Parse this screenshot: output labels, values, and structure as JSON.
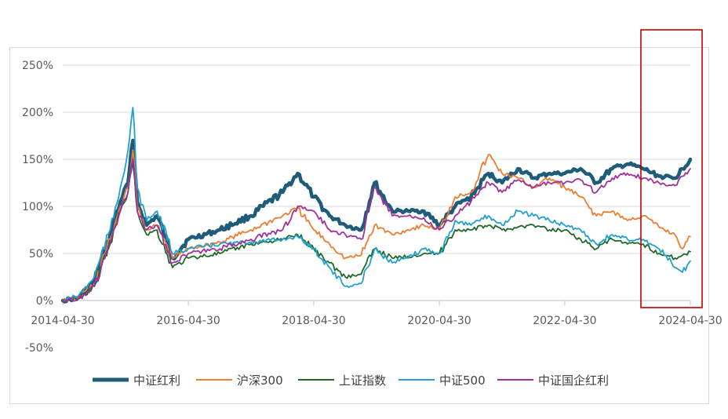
{
  "chart_data": {
    "type": "line",
    "title": "",
    "xlabel": "",
    "ylabel": "",
    "x_ticks": [
      "2014-04-30",
      "2016-04-30",
      "2018-04-30",
      "2020-04-30",
      "2022-04-30",
      "2024-04-30"
    ],
    "y_ticks": [
      "250%",
      "200%",
      "150%",
      "100%",
      "50%",
      "0%",
      "-50%"
    ],
    "ylim": [
      -50,
      250
    ],
    "xlim": [
      "2014-04-30",
      "2024-04-30"
    ],
    "grid": "horizontal",
    "legend_position": "bottom",
    "highlight": {
      "from": "2023-07-31",
      "to": "2024-04-30",
      "color": "#c00000"
    },
    "x": [
      "2014-04-30",
      "2014-07-31",
      "2014-10-31",
      "2015-01-31",
      "2015-03-31",
      "2015-05-15",
      "2015-06-12",
      "2015-07-08",
      "2015-08-31",
      "2015-10-31",
      "2016-01-29",
      "2016-04-30",
      "2016-10-31",
      "2017-04-30",
      "2017-10-31",
      "2018-01-26",
      "2018-04-30",
      "2018-07-31",
      "2018-10-31",
      "2019-01-31",
      "2019-04-19",
      "2019-07-31",
      "2019-10-31",
      "2020-01-31",
      "2020-04-30",
      "2020-07-31",
      "2020-10-31",
      "2021-02-10",
      "2021-04-30",
      "2021-07-31",
      "2021-10-31",
      "2022-01-31",
      "2022-04-30",
      "2022-07-31",
      "2022-10-31",
      "2023-01-31",
      "2023-04-30",
      "2023-07-31",
      "2023-10-31",
      "2024-01-31",
      "2024-03-15",
      "2024-04-30"
    ],
    "series": [
      {
        "name": "中证红利",
        "color": "#1f5c7a",
        "width": 4.5,
        "values": [
          0,
          3,
          20,
          70,
          105,
          125,
          170,
          105,
          80,
          90,
          45,
          65,
          75,
          90,
          115,
          135,
          110,
          90,
          80,
          75,
          125,
          95,
          95,
          95,
          80,
          100,
          110,
          135,
          125,
          140,
          130,
          135,
          135,
          140,
          125,
          140,
          145,
          140,
          132,
          130,
          140,
          150
        ]
      },
      {
        "name": "沪深300",
        "color": "#ed7d31",
        "width": 1.8,
        "values": [
          0,
          3,
          18,
          65,
          100,
          120,
          160,
          100,
          75,
          80,
          45,
          55,
          62,
          75,
          90,
          98,
          75,
          60,
          45,
          48,
          80,
          70,
          75,
          80,
          75,
          110,
          115,
          155,
          135,
          130,
          120,
          130,
          120,
          110,
          90,
          95,
          85,
          90,
          78,
          70,
          55,
          68
        ]
      },
      {
        "name": "上证指数",
        "color": "#1e6b28",
        "width": 1.8,
        "values": [
          0,
          2,
          15,
          60,
          95,
          115,
          150,
          95,
          70,
          75,
          35,
          45,
          50,
          60,
          65,
          70,
          55,
          40,
          25,
          28,
          55,
          45,
          47,
          50,
          50,
          75,
          75,
          80,
          75,
          78,
          80,
          75,
          75,
          65,
          55,
          65,
          60,
          60,
          50,
          45,
          48,
          52
        ]
      },
      {
        "name": "中证500",
        "color": "#219fd0",
        "width": 1.8,
        "values": [
          0,
          5,
          25,
          75,
          120,
          160,
          205,
          120,
          85,
          95,
          50,
          55,
          60,
          62,
          65,
          68,
          55,
          35,
          15,
          18,
          55,
          40,
          45,
          55,
          50,
          85,
          80,
          90,
          80,
          95,
          90,
          85,
          80,
          75,
          60,
          70,
          65,
          65,
          55,
          35,
          30,
          42
        ]
      },
      {
        "name": "中证国企红利",
        "color": "#a0309b",
        "width": 1.8,
        "values": [
          0,
          2,
          15,
          60,
          95,
          115,
          150,
          95,
          75,
          80,
          40,
          50,
          55,
          65,
          75,
          100,
          95,
          75,
          70,
          65,
          120,
          90,
          90,
          88,
          75,
          90,
          105,
          125,
          115,
          128,
          120,
          125,
          125,
          128,
          115,
          130,
          135,
          130,
          125,
          122,
          132,
          140
        ]
      }
    ]
  }
}
